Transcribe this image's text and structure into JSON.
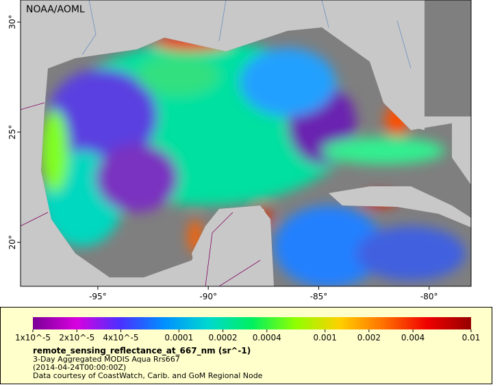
{
  "map": {
    "attribution": "NOAA/AOML",
    "xlim": [
      -98.5,
      -78.1
    ],
    "ylim": [
      18,
      31
    ],
    "xticks": [
      {
        "value": -95,
        "label": "-95°"
      },
      {
        "value": -90,
        "label": "-90°"
      },
      {
        "value": -85,
        "label": "-85°"
      },
      {
        "value": -80,
        "label": "-80°"
      }
    ],
    "yticks": [
      {
        "value": 20,
        "label": "20°"
      },
      {
        "value": 25,
        "label": "25°"
      },
      {
        "value": 30,
        "label": "30°"
      }
    ]
  },
  "colorbar": {
    "scale": "log",
    "lim": [
      1e-05,
      0.01
    ],
    "colors": [
      "#7a0096",
      "#d800e0",
      "#4a30ff",
      "#0090ff",
      "#00d8d0",
      "#00f060",
      "#90ff00",
      "#ffd000",
      "#ff7000",
      "#f00000",
      "#960000"
    ],
    "ticks": [
      {
        "value": 1e-05,
        "label": "1x10^-5"
      },
      {
        "value": 2e-05,
        "label": "2x10^-5"
      },
      {
        "value": 4e-05,
        "label": "4x10^-5"
      },
      0.0001,
      0.0002,
      0.0004,
      0.001,
      0.002,
      0.004,
      0.01
    ]
  },
  "caption": {
    "variable": "remote_sensing_reflectance_at_667_nm (sr^-1)",
    "product": "3-Day Aggregated MODIS Aqua Rrs667",
    "time": "(2014-04-24T00:00:00Z)",
    "credit": "Data courtesy of CoastWatch, Carib. and GoM Regional Node"
  }
}
